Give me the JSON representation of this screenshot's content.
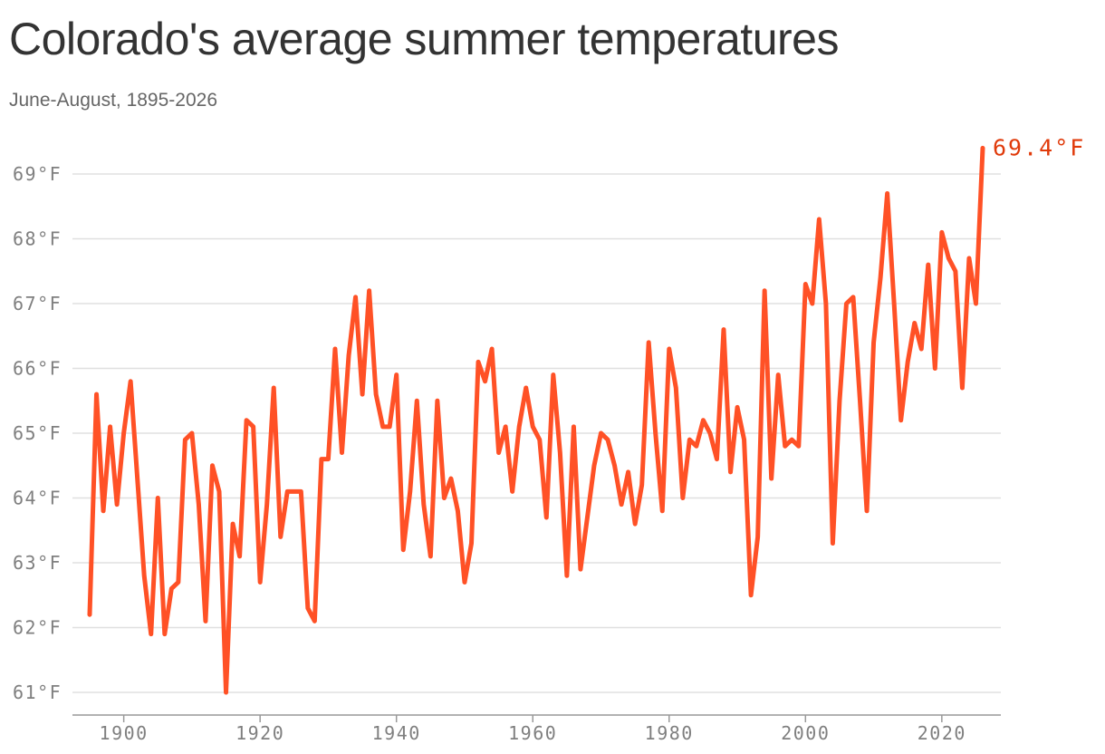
{
  "header": {
    "title": "Colorado's average summer temperatures",
    "subtitle": "June-August, 1895-2026"
  },
  "colors": {
    "line": "#ff5126",
    "callout": "#e03a0a",
    "grid": "#e0e0e0",
    "tick_text": "#7f7f7f",
    "axis": "#999999"
  },
  "chart_data": {
    "type": "line",
    "title": "Colorado's average summer temperatures",
    "subtitle": "June-August, 1895-2026",
    "xlabel": "",
    "ylabel": "",
    "xlim": [
      1895,
      2026
    ],
    "ylim": [
      61,
      69
    ],
    "grid": true,
    "x_ticks": [
      1900,
      1920,
      1940,
      1960,
      1980,
      2000,
      2020
    ],
    "x_tick_labels": [
      "1900",
      "1920",
      "1940",
      "1960",
      "1980",
      "2000",
      "2020"
    ],
    "y_ticks": [
      61,
      62,
      63,
      64,
      65,
      66,
      67,
      68,
      69
    ],
    "y_tick_labels": [
      "61°F",
      "62°F",
      "63°F",
      "64°F",
      "65°F",
      "66°F",
      "67°F",
      "68°F",
      "69°F"
    ],
    "annotation": {
      "x": 2026,
      "y": 69.4,
      "label": "69.4°F"
    },
    "series": [
      {
        "x": [
          1895,
          1896,
          1897,
          1898,
          1899,
          1900,
          1901,
          1902,
          1903,
          1904,
          1905,
          1906,
          1907,
          1908,
          1909,
          1910,
          1911,
          1912,
          1913,
          1914,
          1915,
          1916,
          1917,
          1918,
          1919,
          1920,
          1921,
          1922,
          1923,
          1924,
          1925,
          1926,
          1927,
          1928,
          1929,
          1930,
          1931,
          1932,
          1933,
          1934,
          1935,
          1936,
          1937,
          1938,
          1939,
          1940,
          1941,
          1942,
          1943,
          1944,
          1945,
          1946,
          1947,
          1948,
          1949,
          1950,
          1951,
          1952,
          1953,
          1954,
          1955,
          1956,
          1957,
          1958,
          1959,
          1960,
          1961,
          1962,
          1963,
          1964,
          1965,
          1966,
          1967,
          1968,
          1969,
          1970,
          1971,
          1972,
          1973,
          1974,
          1975,
          1976,
          1977,
          1978,
          1979,
          1980,
          1981,
          1982,
          1983,
          1984,
          1985,
          1986,
          1987,
          1988,
          1989,
          1990,
          1991,
          1992,
          1993,
          1994,
          1995,
          1996,
          1997,
          1998,
          1999,
          2000,
          2001,
          2002,
          2003,
          2004,
          2005,
          2006,
          2007,
          2008,
          2009,
          2010,
          2011,
          2012,
          2013,
          2014,
          2015,
          2016,
          2017,
          2018,
          2019,
          2020,
          2021,
          2022,
          2023,
          2024,
          2025,
          2026
        ],
        "values": [
          62.2,
          65.6,
          63.8,
          65.1,
          63.9,
          65.0,
          65.8,
          64.3,
          62.8,
          61.9,
          64.0,
          61.9,
          62.6,
          62.7,
          64.9,
          65.0,
          63.9,
          62.1,
          64.5,
          64.1,
          61.0,
          63.6,
          63.1,
          65.2,
          65.1,
          62.7,
          63.9,
          65.7,
          63.4,
          64.1,
          64.1,
          64.1,
          62.3,
          62.1,
          64.6,
          64.6,
          66.3,
          64.7,
          66.2,
          67.1,
          65.6,
          67.2,
          65.6,
          65.1,
          65.1,
          65.9,
          63.2,
          64.1,
          65.5,
          63.9,
          63.1,
          65.5,
          64.0,
          64.3,
          63.8,
          62.7,
          63.3,
          66.1,
          65.8,
          66.3,
          64.7,
          65.1,
          64.1,
          65.1,
          65.7,
          65.1,
          64.9,
          63.7,
          65.9,
          64.7,
          62.8,
          65.1,
          62.9,
          63.7,
          64.5,
          65.0,
          64.9,
          64.5,
          63.9,
          64.4,
          63.6,
          64.2,
          66.4,
          65.0,
          63.8,
          66.3,
          65.7,
          64.0,
          64.9,
          64.8,
          65.2,
          65.0,
          64.6,
          66.6,
          64.4,
          65.4,
          64.9,
          62.5,
          63.4,
          67.2,
          64.3,
          65.9,
          64.8,
          64.9,
          64.8,
          67.3,
          67.0,
          68.3,
          67.0,
          63.3,
          65.5,
          67.0,
          67.1,
          65.5,
          63.8,
          66.4,
          67.4,
          68.7,
          67.0,
          65.2,
          66.1,
          66.7,
          66.3,
          67.6,
          66.0,
          68.1,
          67.7,
          67.5,
          65.7,
          67.7,
          67.0,
          69.4
        ]
      }
    ]
  }
}
